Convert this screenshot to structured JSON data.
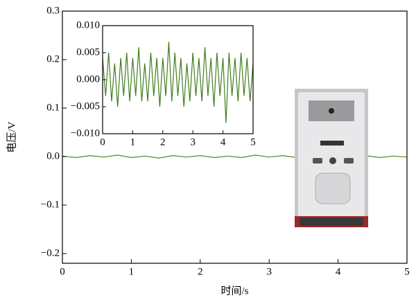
{
  "chart_data": [
    {
      "type": "line",
      "xlabel": "时间/s",
      "ylabel": "电压/V",
      "x": [
        0,
        0.2,
        0.4,
        0.6,
        0.8,
        1.0,
        1.2,
        1.4,
        1.6,
        1.8,
        2.0,
        2.2,
        2.4,
        2.6,
        2.8,
        3.0,
        3.2,
        3.4,
        3.6,
        3.8,
        4.0,
        4.2,
        4.4,
        4.6,
        4.8,
        5.0
      ],
      "series": [
        {
          "color": "#4a8a2a",
          "values": [
            0.001,
            -0.002,
            0.002,
            -0.001,
            0.003,
            -0.002,
            0.001,
            -0.003,
            0.002,
            -0.001,
            0.002,
            -0.002,
            0.001,
            -0.002,
            0.003,
            -0.001,
            0.002,
            -0.002,
            0.001,
            -0.003,
            0.002,
            -0.001,
            0.002,
            -0.002,
            0.001,
            -0.001
          ]
        }
      ],
      "xlim": [
        0,
        5
      ],
      "xticks": [
        0,
        1,
        2,
        3,
        4,
        5
      ],
      "ylim": [
        -0.22,
        0.3
      ],
      "yticks": [
        {
          "value": -0.2,
          "label": "−0.2"
        },
        {
          "value": -0.1,
          "label": "−0.1"
        },
        {
          "value": 0,
          "label": "0.0"
        },
        0.1,
        0.2,
        0.3
      ]
    },
    {
      "type": "line",
      "x": [
        0,
        0.1,
        0.2,
        0.3,
        0.4,
        0.5,
        0.6,
        0.7,
        0.8,
        0.9,
        1.0,
        1.1,
        1.2,
        1.3,
        1.4,
        1.5,
        1.6,
        1.7,
        1.8,
        1.9,
        2.0,
        2.1,
        2.2,
        2.3,
        2.4,
        2.5,
        2.6,
        2.7,
        2.8,
        2.9,
        3.0,
        3.1,
        3.2,
        3.3,
        3.4,
        3.5,
        3.6,
        3.7,
        3.8,
        3.9,
        4.0,
        4.1,
        4.2,
        4.3,
        4.4,
        4.5,
        4.6,
        4.7,
        4.8,
        4.9,
        5.0
      ],
      "series": [
        {
          "color": "#3f7d1e",
          "values": [
            0.004,
            -0.003,
            0.005,
            -0.004,
            0.003,
            -0.005,
            0.004,
            -0.003,
            0.005,
            -0.004,
            0.004,
            -0.003,
            0.006,
            -0.004,
            0.003,
            -0.004,
            0.005,
            -0.003,
            0.004,
            -0.005,
            0.004,
            -0.003,
            0.007,
            -0.004,
            0.005,
            -0.003,
            0.004,
            -0.005,
            0.003,
            -0.004,
            0.005,
            -0.003,
            0.004,
            -0.004,
            0.006,
            -0.003,
            0.004,
            -0.005,
            0.005,
            -0.003,
            0.004,
            -0.008,
            0.005,
            -0.003,
            0.004,
            -0.004,
            0.005,
            -0.003,
            0.004,
            -0.004,
            0.003
          ]
        }
      ],
      "xlim": [
        0,
        5
      ],
      "xticks": [
        0,
        1,
        2,
        3,
        4,
        5
      ],
      "ylim": [
        -0.01,
        0.01
      ],
      "yticks": [
        {
          "value": -0.01,
          "label": "−0.010"
        },
        {
          "value": -0.005,
          "label": "−0.005"
        },
        {
          "value": 0,
          "label": "0.000"
        },
        {
          "value": 0.005,
          "label": "0.005"
        },
        {
          "value": 0.01,
          "label": "0.010"
        }
      ]
    }
  ]
}
